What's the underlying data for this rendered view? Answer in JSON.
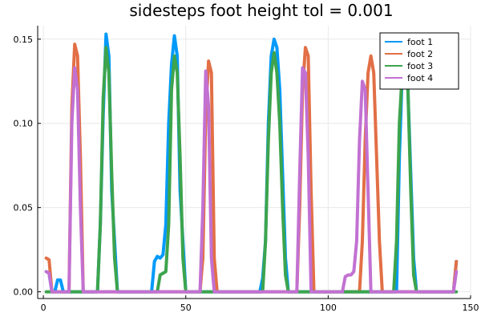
{
  "chart_data": {
    "type": "line",
    "title": "sidesteps foot height tol = 0.001",
    "xlabel": "",
    "ylabel": "",
    "xlim": [
      -2,
      150
    ],
    "ylim": [
      -0.004,
      0.158
    ],
    "xticks": [
      0,
      50,
      100,
      150
    ],
    "yticks": [
      0.0,
      0.05,
      0.1,
      0.15
    ],
    "ytick_labels": [
      "0.00",
      "0.05",
      "0.10",
      "0.15"
    ],
    "grid": true,
    "legend_position": "top-right",
    "series": [
      {
        "name": "foot 1",
        "color": "#009AFA",
        "points": [
          [
            1,
            0.012
          ],
          [
            2,
            0.011
          ],
          [
            3,
            0
          ],
          [
            4,
            0
          ],
          [
            5,
            0.007
          ],
          [
            6,
            0.007
          ],
          [
            7,
            0
          ],
          [
            8,
            0
          ],
          [
            18,
            0
          ],
          [
            19,
            0
          ],
          [
            20,
            0.04
          ],
          [
            21,
            0.105
          ],
          [
            22,
            0.153
          ],
          [
            23,
            0.14
          ],
          [
            24,
            0.06
          ],
          [
            25,
            0.03
          ],
          [
            26,
            0
          ],
          [
            27,
            0
          ],
          [
            37,
            0
          ],
          [
            38,
            0
          ],
          [
            39,
            0.018
          ],
          [
            40,
            0.021
          ],
          [
            41,
            0.02
          ],
          [
            42,
            0.022
          ],
          [
            43,
            0.04
          ],
          [
            44,
            0.1
          ],
          [
            45,
            0.135
          ],
          [
            46,
            0.152
          ],
          [
            47,
            0.14
          ],
          [
            48,
            0.06
          ],
          [
            49,
            0.03
          ],
          [
            50,
            0
          ],
          [
            51,
            0
          ],
          [
            75,
            0
          ],
          [
            76,
            0
          ],
          [
            77,
            0.008
          ],
          [
            78,
            0.03
          ],
          [
            79,
            0.1
          ],
          [
            80,
            0.14
          ],
          [
            81,
            0.15
          ],
          [
            82,
            0.145
          ],
          [
            83,
            0.12
          ],
          [
            84,
            0.07
          ],
          [
            85,
            0.02
          ],
          [
            86,
            0
          ],
          [
            87,
            0
          ],
          [
            122,
            0
          ],
          [
            123,
            0
          ],
          [
            124,
            0
          ],
          [
            125,
            0.08
          ],
          [
            126,
            0.13
          ],
          [
            127,
            0.14
          ],
          [
            128,
            0.12
          ],
          [
            129,
            0.07
          ],
          [
            130,
            0.02
          ],
          [
            131,
            0
          ],
          [
            132,
            0
          ],
          [
            144,
            0
          ],
          [
            145,
            0.018
          ]
        ]
      },
      {
        "name": "foot 2",
        "color": "#E26F46",
        "points": [
          [
            1,
            0.02
          ],
          [
            2,
            0.019
          ],
          [
            3,
            0
          ],
          [
            4,
            0
          ],
          [
            8,
            0
          ],
          [
            9,
            0
          ],
          [
            10,
            0.11
          ],
          [
            11,
            0.147
          ],
          [
            12,
            0.14
          ],
          [
            13,
            0.08
          ],
          [
            14,
            0
          ],
          [
            15,
            0
          ],
          [
            54,
            0
          ],
          [
            55,
            0
          ],
          [
            56,
            0.02
          ],
          [
            57,
            0.105
          ],
          [
            58,
            0.137
          ],
          [
            59,
            0.13
          ],
          [
            60,
            0.02
          ],
          [
            61,
            0
          ],
          [
            62,
            0
          ],
          [
            88,
            0
          ],
          [
            89,
            0
          ],
          [
            90,
            0.05
          ],
          [
            91,
            0.12
          ],
          [
            92,
            0.145
          ],
          [
            93,
            0.14
          ],
          [
            94,
            0.06
          ],
          [
            95,
            0
          ],
          [
            96,
            0
          ],
          [
            110,
            0
          ],
          [
            111,
            0
          ],
          [
            112,
            0.03
          ],
          [
            113,
            0.09
          ],
          [
            114,
            0.13
          ],
          [
            115,
            0.14
          ],
          [
            116,
            0.13
          ],
          [
            117,
            0.08
          ],
          [
            118,
            0.03
          ],
          [
            119,
            0
          ],
          [
            120,
            0
          ],
          [
            144,
            0
          ],
          [
            145,
            0.018
          ]
        ]
      },
      {
        "name": "foot 3",
        "color": "#3DA44D",
        "points": [
          [
            1,
            0
          ],
          [
            2,
            0
          ],
          [
            18,
            0
          ],
          [
            19,
            0
          ],
          [
            20,
            0.04
          ],
          [
            21,
            0.115
          ],
          [
            22,
            0.145
          ],
          [
            23,
            0.13
          ],
          [
            24,
            0.07
          ],
          [
            25,
            0.02
          ],
          [
            26,
            0
          ],
          [
            27,
            0
          ],
          [
            40,
            0
          ],
          [
            41,
            0.01
          ],
          [
            42,
            0.011
          ],
          [
            43,
            0.012
          ],
          [
            44,
            0.04
          ],
          [
            45,
            0.12
          ],
          [
            46,
            0.14
          ],
          [
            47,
            0.13
          ],
          [
            48,
            0.08
          ],
          [
            49,
            0.02
          ],
          [
            50,
            0
          ],
          [
            51,
            0
          ],
          [
            76,
            0
          ],
          [
            77,
            0
          ],
          [
            78,
            0.03
          ],
          [
            79,
            0.09
          ],
          [
            80,
            0.13
          ],
          [
            81,
            0.142
          ],
          [
            82,
            0.13
          ],
          [
            83,
            0.1
          ],
          [
            84,
            0.05
          ],
          [
            85,
            0.01
          ],
          [
            86,
            0
          ],
          [
            87,
            0
          ],
          [
            122,
            0
          ],
          [
            123,
            0
          ],
          [
            124,
            0.03
          ],
          [
            125,
            0.1
          ],
          [
            126,
            0.13
          ],
          [
            127,
            0.13
          ],
          [
            128,
            0.12
          ],
          [
            129,
            0.06
          ],
          [
            130,
            0.01
          ],
          [
            131,
            0
          ],
          [
            132,
            0
          ],
          [
            145,
            0
          ]
        ]
      },
      {
        "name": "foot 4",
        "color": "#C271D2",
        "points": [
          [
            1,
            0.012
          ],
          [
            2,
            0.011
          ],
          [
            3,
            0
          ],
          [
            4,
            0
          ],
          [
            8,
            0
          ],
          [
            9,
            0
          ],
          [
            10,
            0.1
          ],
          [
            11,
            0.133
          ],
          [
            12,
            0.12
          ],
          [
            13,
            0.05
          ],
          [
            14,
            0
          ],
          [
            15,
            0
          ],
          [
            54,
            0
          ],
          [
            55,
            0
          ],
          [
            56,
            0.05
          ],
          [
            57,
            0.131
          ],
          [
            58,
            0.11
          ],
          [
            59,
            0.02
          ],
          [
            60,
            0
          ],
          [
            61,
            0
          ],
          [
            88,
            0
          ],
          [
            89,
            0
          ],
          [
            90,
            0.07
          ],
          [
            91,
            0.133
          ],
          [
            92,
            0.13
          ],
          [
            93,
            0.08
          ],
          [
            94,
            0
          ],
          [
            95,
            0
          ],
          [
            104,
            0
          ],
          [
            105,
            0
          ],
          [
            106,
            0.009
          ],
          [
            107,
            0.01
          ],
          [
            108,
            0.01
          ],
          [
            109,
            0.012
          ],
          [
            110,
            0.03
          ],
          [
            111,
            0.09
          ],
          [
            112,
            0.125
          ],
          [
            113,
            0.12
          ],
          [
            114,
            0.06
          ],
          [
            115,
            0
          ],
          [
            116,
            0
          ],
          [
            144,
            0
          ],
          [
            145,
            0.012
          ]
        ]
      }
    ]
  }
}
